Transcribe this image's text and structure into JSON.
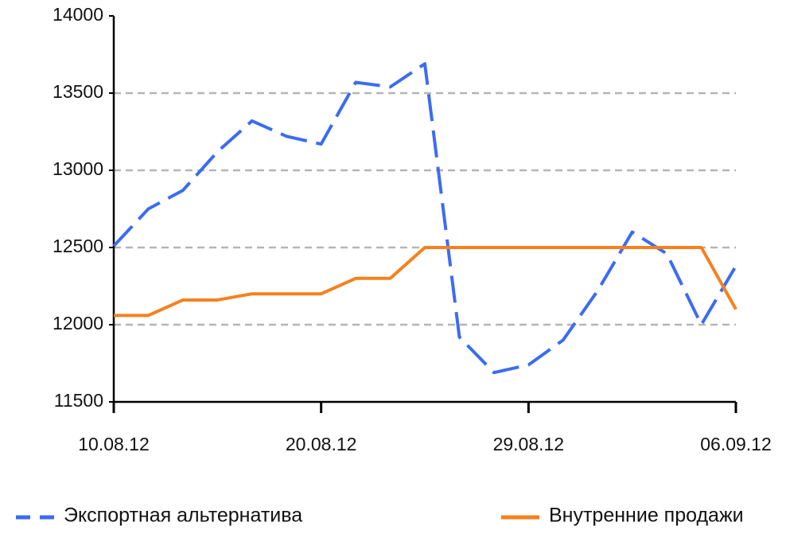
{
  "chart_data": {
    "type": "line",
    "categories": [
      "10.08.12",
      null,
      null,
      null,
      null,
      null,
      "20.08.12",
      null,
      null,
      null,
      null,
      null,
      "29.08.12",
      null,
      null,
      null,
      null,
      null,
      "06.09.12"
    ],
    "series": [
      {
        "name": "Экспортная альтернатива",
        "color": "#3b6cf2",
        "dash": true,
        "values": [
          12510,
          12750,
          12870,
          13120,
          13320,
          13220,
          13170,
          13570,
          13540,
          13690,
          11920,
          11690,
          11740,
          11900,
          12220,
          12600,
          12460,
          12000,
          12380
        ]
      },
      {
        "name": "Внутренние продажи",
        "color": "#f7801e",
        "dash": false,
        "values": [
          12060,
          12060,
          12160,
          12160,
          12200,
          12200,
          12200,
          12300,
          12300,
          12500,
          12500,
          12500,
          12500,
          12500,
          12500,
          12500,
          12500,
          12500,
          12100
        ]
      }
    ],
    "ylim": [
      11500,
      14000
    ],
    "yticks": [
      11500,
      12000,
      12500,
      13000,
      13500,
      14000
    ],
    "grid": true,
    "legend": "bottom"
  }
}
